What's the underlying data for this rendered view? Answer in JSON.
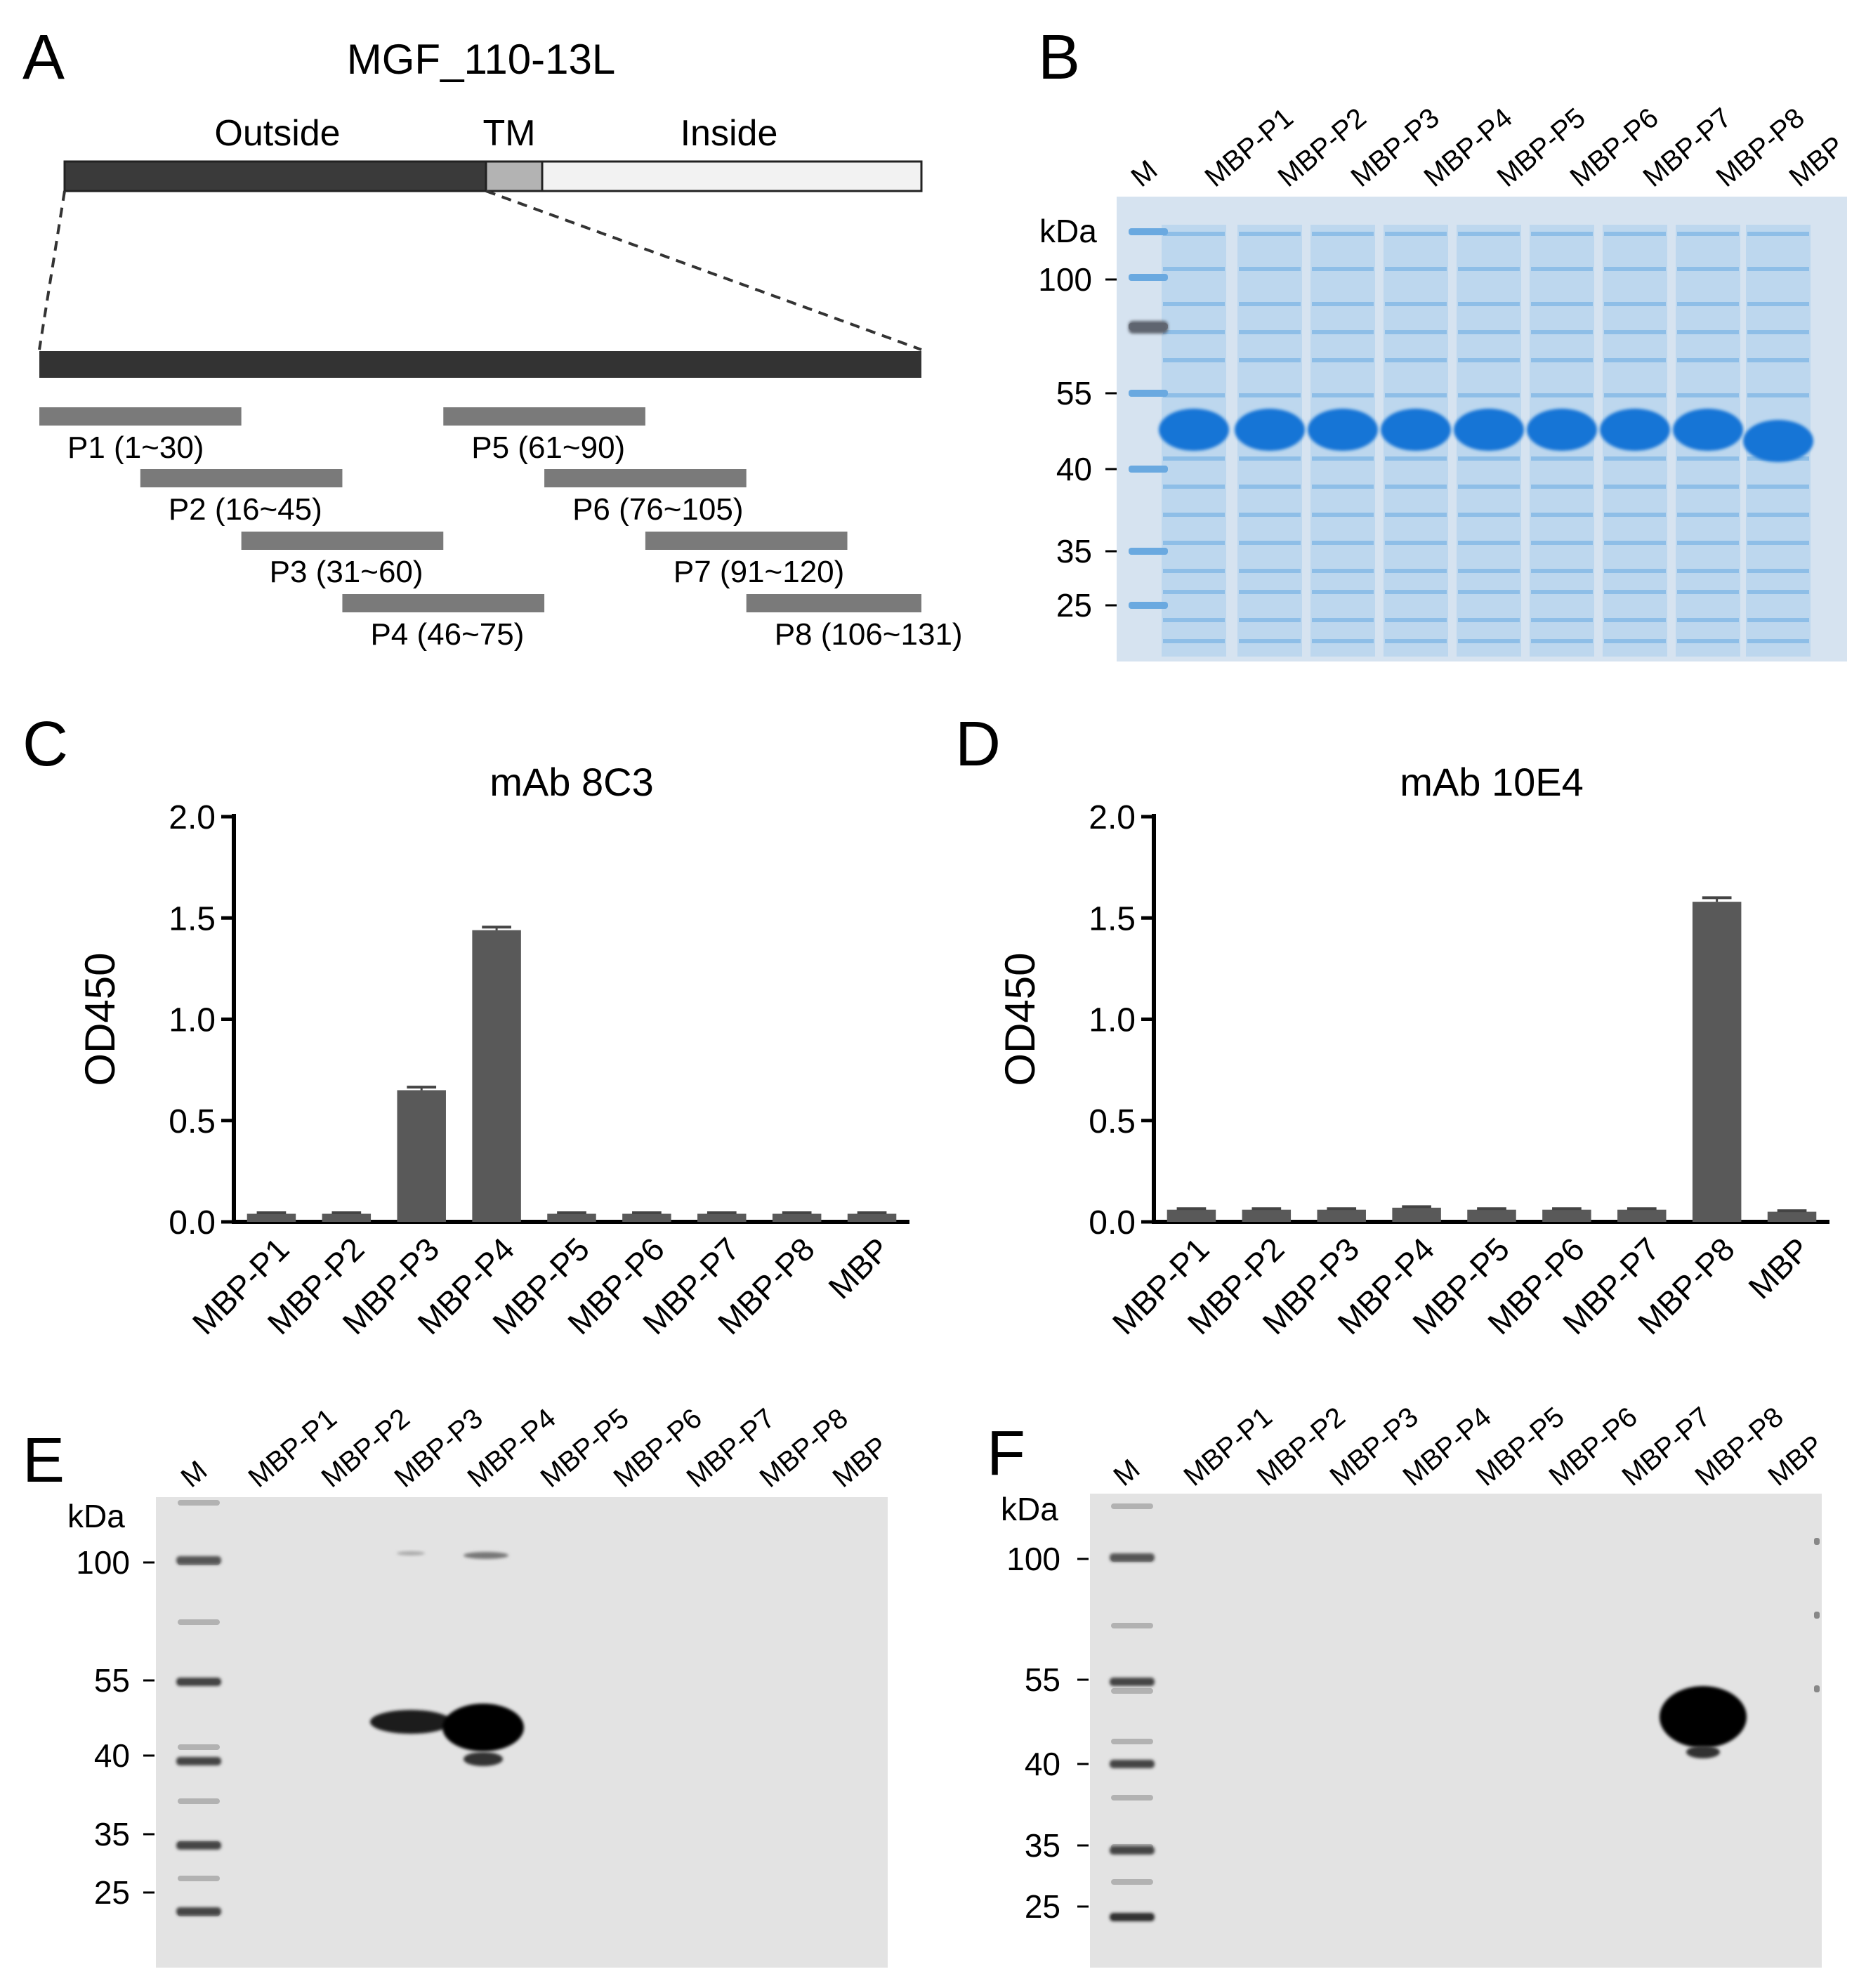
{
  "panels": {
    "A": {
      "label": "A",
      "title": "MGF_110-13L",
      "regions": {
        "outside": "Outside",
        "tm": "TM",
        "inside": "Inside"
      },
      "peptides": [
        {
          "id": "P1",
          "start": 1,
          "end": 30,
          "label": "P1 (1~30)"
        },
        {
          "id": "P2",
          "start": 16,
          "end": 45,
          "label": "P2 (16~45)"
        },
        {
          "id": "P3",
          "start": 31,
          "end": 60,
          "label": "P3 (31~60)"
        },
        {
          "id": "P4",
          "start": 46,
          "end": 75,
          "label": "P4 (46~75)"
        },
        {
          "id": "P5",
          "start": 61,
          "end": 90,
          "label": "P5 (61~90)"
        },
        {
          "id": "P6",
          "start": 76,
          "end": 105,
          "label": "P6 (76~105)"
        },
        {
          "id": "P7",
          "start": 91,
          "end": 120,
          "label": "P7 (91~120)"
        },
        {
          "id": "P8",
          "start": 106,
          "end": 131,
          "label": "P8 (106~131)"
        }
      ]
    },
    "B": {
      "label": "B",
      "marker_label": "M",
      "unit": "kDa",
      "markers": [
        "100",
        "55",
        "40",
        "35",
        "25"
      ],
      "lanes": [
        "MBP-P1",
        "MBP-P2",
        "MBP-P3",
        "MBP-P4",
        "MBP-P5",
        "MBP-P6",
        "MBP-P7",
        "MBP-P8",
        "MBP"
      ]
    },
    "C": {
      "label": "C"
    },
    "D": {
      "label": "D"
    },
    "E": {
      "label": "E",
      "marker_label": "M",
      "unit": "kDa",
      "markers": [
        "100",
        "55",
        "40",
        "35",
        "25"
      ],
      "lanes": [
        "MBP-P1",
        "MBP-P2",
        "MBP-P3",
        "MBP-P4",
        "MBP-P5",
        "MBP-P6",
        "MBP-P7",
        "MBP-P8",
        "MBP"
      ]
    },
    "F": {
      "label": "F",
      "marker_label": "M",
      "unit": "kDa",
      "markers": [
        "100",
        "55",
        "40",
        "35",
        "25"
      ],
      "lanes": [
        "MBP-P1",
        "MBP-P2",
        "MBP-P3",
        "MBP-P4",
        "MBP-P5",
        "MBP-P6",
        "MBP-P7",
        "MBP-P8",
        "MBP"
      ]
    }
  },
  "chart_data": [
    {
      "type": "bar",
      "title": "mAb 8C3",
      "xlabel": "",
      "ylabel": "OD450",
      "ylim": [
        0,
        2.0
      ],
      "yticks": [
        "0.0",
        "0.5",
        "1.0",
        "1.5",
        "2.0"
      ],
      "categories": [
        "MBP-P1",
        "MBP-P2",
        "MBP-P3",
        "MBP-P4",
        "MBP-P5",
        "MBP-P6",
        "MBP-P7",
        "MBP-P8",
        "MBP"
      ],
      "values": [
        0.04,
        0.04,
        0.65,
        1.44,
        0.04,
        0.04,
        0.04,
        0.04,
        0.04
      ],
      "errors": [
        0.005,
        0.005,
        0.015,
        0.015,
        0.005,
        0.005,
        0.005,
        0.005,
        0.005
      ],
      "color": "#595959"
    },
    {
      "type": "bar",
      "title": "mAb 10E4",
      "xlabel": "",
      "ylabel": "OD450",
      "ylim": [
        0,
        2.0
      ],
      "yticks": [
        "0.0",
        "0.5",
        "1.0",
        "1.5",
        "2.0"
      ],
      "categories": [
        "MBP-P1",
        "MBP-P2",
        "MBP-P3",
        "MBP-P4",
        "MBP-P5",
        "MBP-P6",
        "MBP-P7",
        "MBP-P8",
        "MBP"
      ],
      "values": [
        0.06,
        0.06,
        0.06,
        0.07,
        0.06,
        0.06,
        0.06,
        1.58,
        0.05
      ],
      "errors": [
        0.005,
        0.005,
        0.005,
        0.005,
        0.005,
        0.005,
        0.005,
        0.02,
        0.005
      ],
      "color": "#595959"
    }
  ]
}
